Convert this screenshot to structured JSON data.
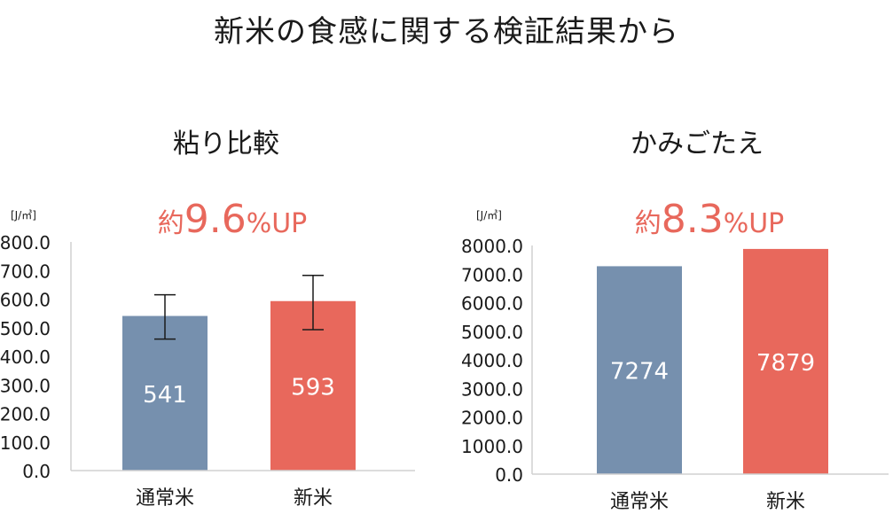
{
  "main_title": "新米の食感に関する検証結果から",
  "colors": {
    "regular": "#7690ae",
    "new": "#e8685c",
    "accent": "#e8685c",
    "axis": "#d0d0d0",
    "text": "#1a1a1a"
  },
  "chart_data": [
    {
      "type": "bar",
      "title": "粘り比較",
      "headline": {
        "prefix": "約",
        "value": "9.6",
        "suffix": "%UP"
      },
      "ylabel": "[J/㎥]",
      "ylim": [
        0,
        800
      ],
      "ytick_step": 100,
      "categories": [
        "通常米",
        "新米"
      ],
      "values": [
        541,
        593
      ],
      "value_labels": [
        "541",
        "593"
      ],
      "error_bars": [
        [
          460,
          615
        ],
        [
          493,
          683
        ]
      ],
      "bar_colors": [
        "#7690ae",
        "#e8685c"
      ]
    },
    {
      "type": "bar",
      "title": "かみごたえ",
      "headline": {
        "prefix": "約",
        "value": "8.3",
        "suffix": "%UP"
      },
      "ylabel": "[J/㎥]",
      "ylim": [
        0,
        8000
      ],
      "ytick_step": 1000,
      "categories": [
        "通常米",
        "新米"
      ],
      "values": [
        7274,
        7879
      ],
      "value_labels": [
        "7274",
        "7879"
      ],
      "bar_colors": [
        "#7690ae",
        "#e8685c"
      ]
    }
  ]
}
